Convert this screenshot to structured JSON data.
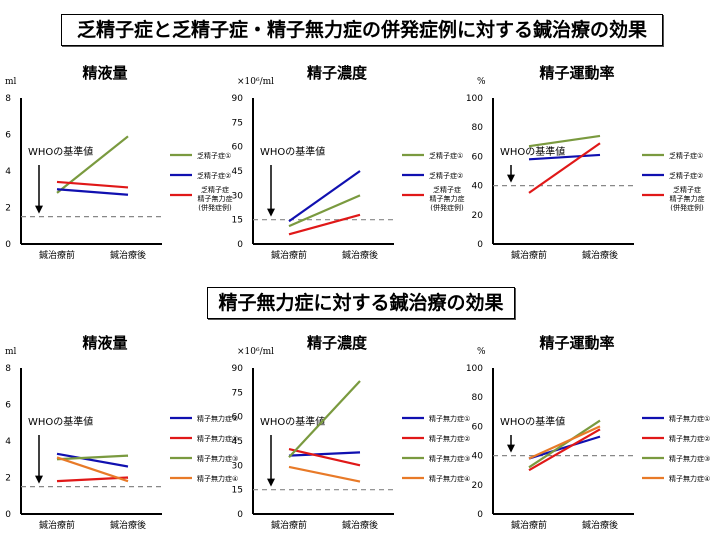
{
  "banners": {
    "top": "乏精子症と乏精子症・精子無力症の併発症例に対する鍼治療の効果",
    "bottom": "精子無力症に対する鍼治療の効果"
  },
  "chart_data": [
    {
      "type": "line",
      "title": "精液量",
      "ylabel": "ml",
      "categories": [
        "鍼治療前",
        "鍼治療後"
      ],
      "ylim": [
        0,
        8
      ],
      "yticks": [
        0,
        2,
        4,
        6,
        8
      ],
      "reference": {
        "label": "WHOの基準値",
        "value": 1.5
      },
      "series": [
        {
          "name": "乏精子症①",
          "color": "#7a9a3f",
          "values": [
            2.8,
            5.9
          ]
        },
        {
          "name": "乏精子症②",
          "color": "#1010b0",
          "values": [
            3.0,
            2.7
          ]
        },
        {
          "name": "乏精子症\n精子無力症\n(併発症例)",
          "color": "#e01818",
          "values": [
            3.4,
            3.1
          ]
        }
      ]
    },
    {
      "type": "line",
      "title": "精子濃度",
      "ylabel": "×10⁶/ml",
      "categories": [
        "鍼治療前",
        "鍼治療後"
      ],
      "ylim": [
        0,
        90
      ],
      "yticks": [
        0,
        15,
        30,
        45,
        60,
        75,
        90
      ],
      "reference": {
        "label": "WHOの基準値",
        "value": 15
      },
      "series": [
        {
          "name": "乏精子症①",
          "color": "#7a9a3f",
          "values": [
            11,
            30
          ]
        },
        {
          "name": "乏精子症②",
          "color": "#1010b0",
          "values": [
            14,
            45
          ]
        },
        {
          "name": "乏精子症\n精子無力症\n(併発症例)",
          "color": "#e01818",
          "values": [
            6,
            18
          ]
        }
      ]
    },
    {
      "type": "line",
      "title": "精子運動率",
      "ylabel": "%",
      "categories": [
        "鍼治療前",
        "鍼治療後"
      ],
      "ylim": [
        0,
        100
      ],
      "yticks": [
        0,
        20,
        40,
        60,
        80,
        100
      ],
      "reference": {
        "label": "WHOの基準値",
        "value": 40
      },
      "series": [
        {
          "name": "乏精子症①",
          "color": "#7a9a3f",
          "values": [
            67,
            74
          ]
        },
        {
          "name": "乏精子症②",
          "color": "#1010b0",
          "values": [
            58,
            61
          ]
        },
        {
          "name": "乏精子症\n精子無力症\n(併発症例)",
          "color": "#e01818",
          "values": [
            35,
            69
          ]
        }
      ]
    },
    {
      "type": "line",
      "title": "精液量",
      "ylabel": "ml",
      "categories": [
        "鍼治療前",
        "鍼治療後"
      ],
      "ylim": [
        0,
        8
      ],
      "yticks": [
        0,
        2,
        4,
        6,
        8
      ],
      "reference": {
        "label": "WHOの基準値",
        "value": 1.5
      },
      "series": [
        {
          "name": "精子無力症①",
          "color": "#1010b0",
          "values": [
            3.3,
            2.6
          ]
        },
        {
          "name": "精子無力症②",
          "color": "#e01818",
          "values": [
            1.8,
            2.0
          ]
        },
        {
          "name": "精子無力症③",
          "color": "#7a9a3f",
          "values": [
            3.0,
            3.2
          ]
        },
        {
          "name": "精子無力症④",
          "color": "#e87a28",
          "values": [
            3.1,
            1.8
          ]
        }
      ]
    },
    {
      "type": "line",
      "title": "精子濃度",
      "ylabel": "×10⁶/ml",
      "categories": [
        "鍼治療前",
        "鍼治療後"
      ],
      "ylim": [
        0,
        90
      ],
      "yticks": [
        0,
        15,
        30,
        45,
        60,
        75,
        90
      ],
      "reference": {
        "label": "WHOの基準値",
        "value": 15
      },
      "series": [
        {
          "name": "精子無力症①",
          "color": "#1010b0",
          "values": [
            36,
            38
          ]
        },
        {
          "name": "精子無力症②",
          "color": "#e01818",
          "values": [
            40,
            30
          ]
        },
        {
          "name": "精子無力症③",
          "color": "#7a9a3f",
          "values": [
            35,
            82
          ]
        },
        {
          "name": "精子無力症④",
          "color": "#e87a28",
          "values": [
            29,
            20
          ]
        }
      ]
    },
    {
      "type": "line",
      "title": "精子運動率",
      "ylabel": "%",
      "categories": [
        "鍼治療前",
        "鍼治療後"
      ],
      "ylim": [
        0,
        100
      ],
      "yticks": [
        0,
        20,
        40,
        60,
        80,
        100
      ],
      "reference": {
        "label": "WHOの基準値",
        "value": 40
      },
      "series": [
        {
          "name": "精子無力症①",
          "color": "#1010b0",
          "values": [
            38,
            53
          ]
        },
        {
          "name": "精子無力症②",
          "color": "#e01818",
          "values": [
            30,
            58
          ]
        },
        {
          "name": "精子無力症③",
          "color": "#7a9a3f",
          "values": [
            32,
            64
          ]
        },
        {
          "name": "精子無力症④",
          "color": "#e87a28",
          "values": [
            38,
            60
          ]
        }
      ]
    }
  ]
}
